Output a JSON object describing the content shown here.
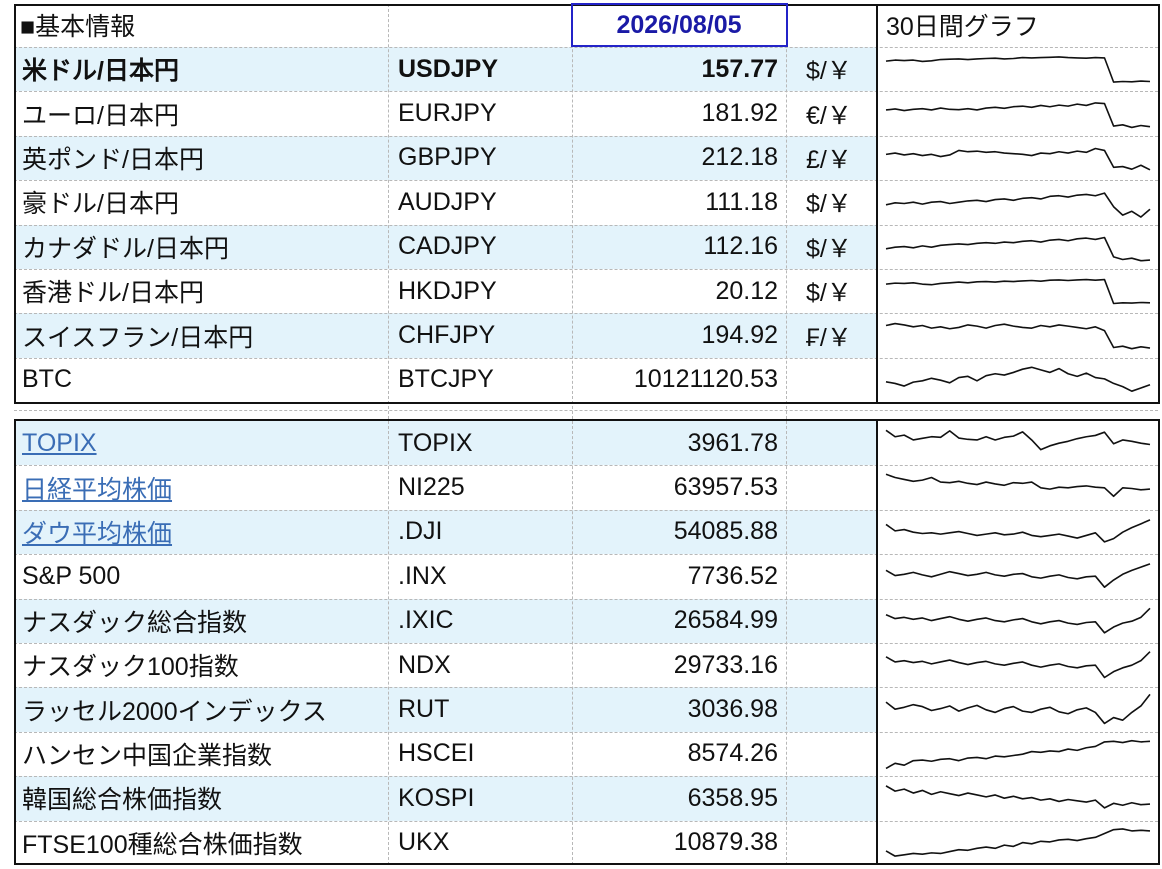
{
  "header": {
    "title": "■基本情報",
    "date": "2026/08/05",
    "graph_title": "30日間グラフ"
  },
  "colors": {
    "stripe": "#e3f3fb",
    "link": "#3a6db5",
    "date": "#1a1aa6",
    "line": "#111111"
  },
  "currencies": [
    {
      "name": "米ドル/日本円",
      "code": "USDJPY",
      "value": "157.77",
      "unit": "$/￥",
      "bold": true,
      "spark": [
        0.75,
        0.78,
        0.77,
        0.78,
        0.74,
        0.76,
        0.8,
        0.81,
        0.82,
        0.8,
        0.82,
        0.83,
        0.84,
        0.82,
        0.83,
        0.86,
        0.85,
        0.86,
        0.87,
        0.88,
        0.86,
        0.85,
        0.84,
        0.86,
        0.85,
        0.1,
        0.12,
        0.11,
        0.13,
        0.12
      ]
    },
    {
      "name": "ユーロ/日本円",
      "code": "EURJPY",
      "value": "181.92",
      "unit": "€/￥",
      "spark": [
        0.6,
        0.63,
        0.58,
        0.62,
        0.64,
        0.6,
        0.66,
        0.62,
        0.61,
        0.64,
        0.6,
        0.66,
        0.68,
        0.65,
        0.7,
        0.72,
        0.68,
        0.74,
        0.7,
        0.75,
        0.72,
        0.78,
        0.74,
        0.82,
        0.8,
        0.1,
        0.14,
        0.06,
        0.12,
        0.08
      ]
    },
    {
      "name": "英ポンド/日本円",
      "code": "GBPJPY",
      "value": "212.18",
      "unit": "£/￥",
      "spark": [
        0.62,
        0.66,
        0.6,
        0.64,
        0.58,
        0.62,
        0.55,
        0.6,
        0.74,
        0.7,
        0.72,
        0.68,
        0.7,
        0.66,
        0.64,
        0.62,
        0.58,
        0.66,
        0.64,
        0.7,
        0.66,
        0.72,
        0.68,
        0.8,
        0.74,
        0.22,
        0.24,
        0.16,
        0.28,
        0.14
      ]
    },
    {
      "name": "豪ドル/日本円",
      "code": "AUDJPY",
      "value": "111.18",
      "unit": "$/￥",
      "spark": [
        0.42,
        0.48,
        0.46,
        0.5,
        0.44,
        0.5,
        0.52,
        0.46,
        0.5,
        0.54,
        0.56,
        0.52,
        0.58,
        0.6,
        0.56,
        0.62,
        0.64,
        0.6,
        0.68,
        0.7,
        0.66,
        0.72,
        0.74,
        0.7,
        0.78,
        0.36,
        0.1,
        0.22,
        0.04,
        0.28
      ]
    },
    {
      "name": "カナダドル/日本円",
      "code": "CADJPY",
      "value": "112.16",
      "unit": "$/￥",
      "spark": [
        0.45,
        0.5,
        0.52,
        0.48,
        0.54,
        0.5,
        0.56,
        0.58,
        0.6,
        0.58,
        0.62,
        0.64,
        0.62,
        0.66,
        0.64,
        0.68,
        0.7,
        0.66,
        0.72,
        0.74,
        0.7,
        0.76,
        0.78,
        0.74,
        0.8,
        0.2,
        0.12,
        0.16,
        0.08,
        0.1
      ]
    },
    {
      "name": "香港ドル/日本円",
      "code": "HKDJPY",
      "value": "20.12",
      "unit": "$/￥",
      "spark": [
        0.72,
        0.75,
        0.74,
        0.76,
        0.72,
        0.7,
        0.74,
        0.76,
        0.78,
        0.76,
        0.79,
        0.8,
        0.78,
        0.81,
        0.8,
        0.82,
        0.83,
        0.81,
        0.84,
        0.85,
        0.83,
        0.85,
        0.86,
        0.84,
        0.86,
        0.12,
        0.14,
        0.13,
        0.15,
        0.14
      ]
    },
    {
      "name": "スイスフラン/日本円",
      "code": "CHFJPY",
      "value": "194.92",
      "unit": "₣/￥",
      "spark": [
        0.8,
        0.86,
        0.82,
        0.76,
        0.8,
        0.72,
        0.76,
        0.7,
        0.74,
        0.82,
        0.78,
        0.72,
        0.8,
        0.84,
        0.78,
        0.74,
        0.72,
        0.8,
        0.76,
        0.82,
        0.78,
        0.74,
        0.7,
        0.76,
        0.64,
        0.12,
        0.16,
        0.08,
        0.14,
        0.1
      ]
    },
    {
      "name": "BTC",
      "code": "BTCJPY",
      "value": "10121120.53",
      "unit": "",
      "spark": [
        0.45,
        0.4,
        0.32,
        0.44,
        0.48,
        0.56,
        0.5,
        0.42,
        0.58,
        0.62,
        0.48,
        0.64,
        0.7,
        0.66,
        0.74,
        0.84,
        0.9,
        0.82,
        0.74,
        0.86,
        0.7,
        0.62,
        0.72,
        0.58,
        0.54,
        0.4,
        0.3,
        0.16,
        0.26,
        0.36
      ]
    }
  ],
  "indices": [
    {
      "name": "TOPIX",
      "code": "TOPIX",
      "value": "3961.78",
      "link": true,
      "spark": [
        0.9,
        0.7,
        0.75,
        0.6,
        0.65,
        0.7,
        0.68,
        0.88,
        0.66,
        0.62,
        0.6,
        0.7,
        0.6,
        0.68,
        0.72,
        0.85,
        0.6,
        0.3,
        0.42,
        0.5,
        0.56,
        0.64,
        0.7,
        0.74,
        0.84,
        0.48,
        0.6,
        0.56,
        0.5,
        0.46
      ]
    },
    {
      "name": "日経平均株価",
      "code": "NI225",
      "value": "63957.53",
      "link": true,
      "spark": [
        0.9,
        0.8,
        0.74,
        0.68,
        0.72,
        0.8,
        0.66,
        0.64,
        0.68,
        0.62,
        0.58,
        0.66,
        0.6,
        0.56,
        0.64,
        0.62,
        0.66,
        0.48,
        0.44,
        0.5,
        0.48,
        0.52,
        0.54,
        0.5,
        0.48,
        0.22,
        0.48,
        0.46,
        0.42,
        0.44
      ]
    },
    {
      "name": "ダウ平均株価",
      "code": ".DJI",
      "value": "54085.88",
      "link": true,
      "spark": [
        0.74,
        0.54,
        0.58,
        0.5,
        0.46,
        0.48,
        0.44,
        0.48,
        0.52,
        0.46,
        0.4,
        0.44,
        0.48,
        0.42,
        0.44,
        0.5,
        0.4,
        0.36,
        0.4,
        0.44,
        0.38,
        0.32,
        0.4,
        0.48,
        0.2,
        0.3,
        0.5,
        0.64,
        0.76,
        0.88
      ]
    },
    {
      "name": "S&P 500",
      "code": ".INX",
      "value": "7736.52",
      "link": false,
      "spark": [
        0.68,
        0.52,
        0.56,
        0.62,
        0.54,
        0.48,
        0.56,
        0.64,
        0.58,
        0.52,
        0.56,
        0.62,
        0.54,
        0.5,
        0.56,
        0.58,
        0.48,
        0.44,
        0.5,
        0.54,
        0.46,
        0.42,
        0.48,
        0.5,
        0.16,
        0.38,
        0.56,
        0.68,
        0.78,
        0.88
      ]
    },
    {
      "name": "ナスダック総合指数",
      "code": ".IXIC",
      "value": "26584.99",
      "link": false,
      "spark": [
        0.7,
        0.58,
        0.62,
        0.56,
        0.6,
        0.52,
        0.58,
        0.64,
        0.56,
        0.5,
        0.56,
        0.6,
        0.52,
        0.48,
        0.54,
        0.58,
        0.48,
        0.42,
        0.48,
        0.52,
        0.44,
        0.4,
        0.46,
        0.48,
        0.14,
        0.32,
        0.44,
        0.5,
        0.62,
        0.9
      ]
    },
    {
      "name": "ナスダック100指数",
      "code": "NDX",
      "value": "29733.16",
      "link": false,
      "spark": [
        0.76,
        0.6,
        0.64,
        0.58,
        0.62,
        0.54,
        0.6,
        0.66,
        0.58,
        0.52,
        0.58,
        0.62,
        0.54,
        0.5,
        0.56,
        0.6,
        0.5,
        0.44,
        0.5,
        0.54,
        0.46,
        0.42,
        0.48,
        0.5,
        0.12,
        0.3,
        0.42,
        0.5,
        0.64,
        0.92
      ]
    },
    {
      "name": "ラッセル2000インデックス",
      "code": "RUT",
      "value": "3036.98",
      "link": false,
      "spark": [
        0.72,
        0.5,
        0.56,
        0.64,
        0.58,
        0.46,
        0.52,
        0.6,
        0.44,
        0.54,
        0.62,
        0.48,
        0.4,
        0.52,
        0.58,
        0.44,
        0.4,
        0.5,
        0.56,
        0.42,
        0.36,
        0.48,
        0.54,
        0.4,
        0.06,
        0.24,
        0.16,
        0.4,
        0.6,
        0.96
      ]
    },
    {
      "name": "ハンセン中国企業指数",
      "code": "HSCEI",
      "value": "8574.26",
      "link": false,
      "spark": [
        0.06,
        0.22,
        0.16,
        0.3,
        0.32,
        0.28,
        0.34,
        0.36,
        0.3,
        0.38,
        0.4,
        0.36,
        0.44,
        0.42,
        0.46,
        0.5,
        0.58,
        0.56,
        0.6,
        0.58,
        0.66,
        0.62,
        0.7,
        0.74,
        0.88,
        0.9,
        0.86,
        0.92,
        0.88,
        0.9
      ]
    },
    {
      "name": "韓国総合株価指数",
      "code": "KOSPI",
      "value": "6358.95",
      "link": false,
      "spark": [
        0.88,
        0.72,
        0.78,
        0.66,
        0.74,
        0.62,
        0.7,
        0.64,
        0.58,
        0.66,
        0.6,
        0.54,
        0.6,
        0.5,
        0.56,
        0.48,
        0.52,
        0.44,
        0.48,
        0.4,
        0.46,
        0.42,
        0.38,
        0.44,
        0.2,
        0.34,
        0.28,
        0.36,
        0.3,
        0.32
      ]
    },
    {
      "name": "FTSE100種総合株価指数",
      "code": "UKX",
      "value": "10879.38",
      "link": false,
      "spark": [
        0.26,
        0.1,
        0.14,
        0.18,
        0.16,
        0.2,
        0.18,
        0.24,
        0.3,
        0.28,
        0.34,
        0.38,
        0.34,
        0.44,
        0.4,
        0.52,
        0.48,
        0.56,
        0.54,
        0.6,
        0.62,
        0.58,
        0.64,
        0.68,
        0.8,
        0.92,
        0.94,
        0.88,
        0.9,
        0.88
      ]
    }
  ]
}
